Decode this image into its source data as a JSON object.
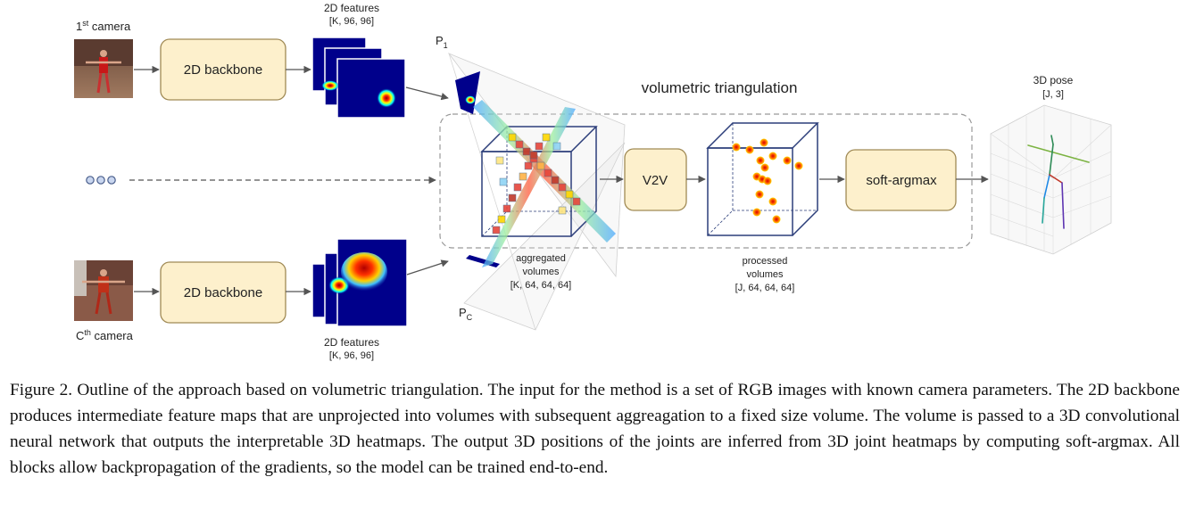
{
  "cameras": {
    "first_label_prefix": "1",
    "first_label_sup": "st",
    "first_label_suffix": " camera",
    "last_label_prefix": "C",
    "last_label_sup": "th",
    "last_label_suffix": " camera"
  },
  "backbone": {
    "label": "2D backbone"
  },
  "features": {
    "top_title": "2D features",
    "top_shape": "[K, 96, 96]",
    "bottom_title": "2D features",
    "bottom_shape": "[K, 96, 96]"
  },
  "projections": {
    "p1_main": "P",
    "p1_sub": "1",
    "pc_main": "P",
    "pc_sub": "C"
  },
  "volumetric": {
    "title": "volumetric triangulation"
  },
  "aggregated": {
    "line1": "aggregated",
    "line2": "volumes",
    "shape": "[K, 64, 64, 64]"
  },
  "v2v": {
    "label": "V2V"
  },
  "processed": {
    "line1": "processed",
    "line2": "volumes",
    "shape": "[J, 64, 64, 64]"
  },
  "softargmax": {
    "label": "soft-argmax"
  },
  "pose": {
    "title": "3D pose",
    "shape": "[J, 3]",
    "title_color": "#c0392b"
  },
  "caption": "Figure 2. Outline of the approach based on volumetric triangulation. The input for the method is a set of RGB images with known camera parameters. The 2D backbone produces intermediate feature maps that are unprojected into volumes with subsequent aggreagation to a fixed size volume. The volume is passed to a 3D convolutional neural network that outputs the interpretable 3D heatmaps. The output 3D positions of the joints are inferred from 3D joint heatmaps by computing soft-argmax. All blocks allow backpropagation of the gradients, so the model can be trained end-to-end.",
  "colors": {
    "box_fill": "#fdf0cc",
    "box_stroke": "#a08a55",
    "heatmap_bg": "#00008b",
    "cube_stroke": "#2c3e7a",
    "dashed": "#999999"
  }
}
